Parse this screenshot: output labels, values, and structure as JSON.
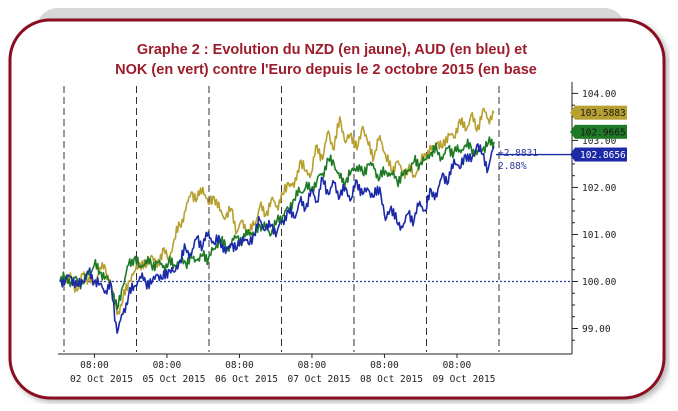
{
  "chart_data": {
    "type": "line",
    "title_lines": [
      "Graphe 2 : Evolution du NZD (en jaune), AUD (en bleu) et",
      "NOK (en vert) contre l'Euro depuis le 2 octobre 2015 (en base"
    ],
    "xlabel": "",
    "ylabel": "",
    "ylim": [
      98.5,
      104.2
    ],
    "y_ticks": [
      "104.00",
      "103.00",
      "102.00",
      "101.00",
      "100.00",
      "99.00"
    ],
    "y_tick_values": [
      104,
      103,
      102,
      101,
      100,
      99
    ],
    "x_time_labels": [
      "08:00",
      "08:00",
      "08:00",
      "08:00",
      "08:00",
      "08:00"
    ],
    "x_date_labels": [
      "02 Oct 2015",
      "05 Oct 2015",
      "06 Oct 2015",
      "07 Oct 2015",
      "08 Oct 2015",
      "09 Oct 2015"
    ],
    "baseline": 100,
    "grid": false,
    "series": [
      {
        "color": "#b8a030",
        "last_label": "103.5883",
        "values": [
          100.0,
          100.1,
          100.05,
          99.8,
          100.15,
          100.05,
          99.95,
          100.3,
          100.25,
          99.9,
          99.3,
          99.6,
          100.0,
          100.2,
          100.4,
          100.3,
          100.55,
          100.3,
          100.7,
          100.45,
          100.9,
          101.2,
          101.5,
          101.9,
          101.75,
          102.0,
          101.65,
          101.8,
          101.5,
          101.35,
          101.55,
          101.05,
          101.3,
          101.0,
          101.2,
          101.6,
          101.4,
          101.75,
          101.6,
          101.85,
          102.1,
          102.0,
          102.55,
          102.35,
          102.3,
          102.9,
          102.6,
          103.2,
          102.8,
          103.5,
          102.95,
          103.15,
          102.8,
          103.3,
          102.9,
          102.65,
          103.1,
          102.7,
          102.35,
          102.55,
          102.3,
          102.4,
          102.25,
          102.5,
          102.7,
          102.8,
          102.95,
          102.85,
          103.15,
          103.05,
          103.45,
          103.2,
          103.55,
          103.2,
          103.65,
          103.45,
          103.59
        ]
      },
      {
        "color": "#1c2aa8",
        "last_label": "102.8656",
        "values": [
          100.0,
          100.05,
          100.1,
          99.9,
          100.0,
          100.2,
          100.0,
          99.95,
          99.8,
          99.9,
          98.9,
          99.3,
          99.7,
          99.9,
          100.1,
          100.0,
          99.95,
          100.15,
          100.05,
          100.25,
          100.2,
          100.45,
          100.7,
          100.55,
          100.95,
          100.75,
          101.05,
          100.8,
          100.9,
          100.6,
          100.8,
          100.7,
          100.95,
          100.8,
          101.0,
          101.3,
          101.1,
          101.2,
          101.05,
          101.3,
          101.5,
          101.35,
          101.7,
          101.55,
          101.95,
          101.7,
          102.2,
          101.85,
          102.1,
          101.8,
          102.0,
          101.75,
          102.15,
          101.85,
          101.95,
          101.8,
          102.0,
          101.3,
          101.6,
          101.25,
          101.15,
          101.45,
          101.3,
          101.7,
          101.5,
          101.95,
          101.8,
          102.3,
          102.1,
          102.6,
          102.4,
          102.7,
          102.55,
          102.9,
          102.7,
          102.4,
          102.87
        ]
      },
      {
        "color": "#1e7a26",
        "last_label": "102.9665",
        "values": [
          100.0,
          100.1,
          100.0,
          100.05,
          99.95,
          100.15,
          100.35,
          100.2,
          100.1,
          99.9,
          99.4,
          99.9,
          100.35,
          100.5,
          100.3,
          100.45,
          100.35,
          100.4,
          100.3,
          100.4,
          100.35,
          100.45,
          100.4,
          100.5,
          100.45,
          100.55,
          100.5,
          100.7,
          100.9,
          100.7,
          100.8,
          100.95,
          100.85,
          101.1,
          101.0,
          101.2,
          101.15,
          101.0,
          101.3,
          101.4,
          101.55,
          101.75,
          101.9,
          102.0,
          101.95,
          102.15,
          102.3,
          102.6,
          102.5,
          102.2,
          102.1,
          102.35,
          102.45,
          102.3,
          102.5,
          102.4,
          102.2,
          102.35,
          102.3,
          102.15,
          102.25,
          102.35,
          102.55,
          102.5,
          102.6,
          102.75,
          102.8,
          102.6,
          102.85,
          102.75,
          102.8,
          102.9,
          102.85,
          102.7,
          102.8,
          102.95,
          102.97
        ]
      }
    ],
    "annotations": [
      "+2.8831",
      "2.88%"
    ]
  }
}
